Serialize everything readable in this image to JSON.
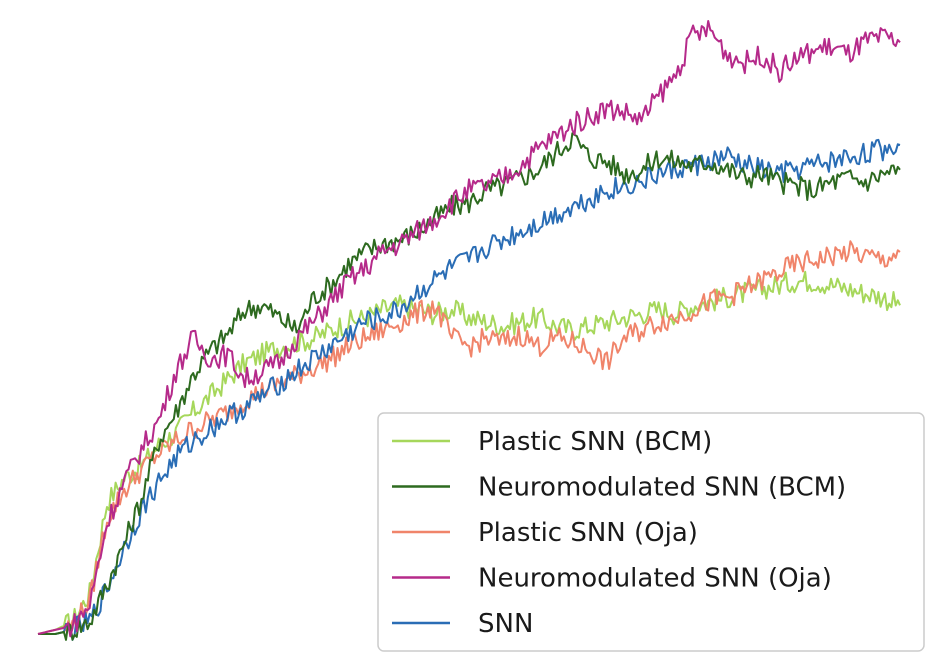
{
  "chart_data": {
    "type": "line",
    "title": "",
    "xlabel": "",
    "ylabel": "",
    "axes_visible": false,
    "grid": false,
    "legend_position": "bottom-right",
    "x": [
      0,
      2,
      4,
      6,
      8,
      10,
      12,
      14,
      16,
      18,
      20,
      22,
      24,
      26,
      28,
      30,
      32,
      34,
      36,
      38,
      40,
      42,
      44,
      46,
      48,
      50,
      52,
      54,
      56,
      58,
      60,
      62,
      64,
      66,
      68,
      70,
      72,
      74,
      76,
      78,
      80,
      82,
      84,
      86,
      88,
      90,
      92,
      94,
      96,
      98,
      100
    ],
    "series": [
      {
        "name": "Plastic SNN (BCM)",
        "color": "#a6d75b",
        "values": [
          0,
          1,
          3,
          10,
          32,
          38,
          41,
          46,
          49,
          54,
          58,
          62,
          66,
          68,
          70,
          71,
          72,
          74,
          76,
          77,
          79,
          80,
          79,
          78,
          79,
          77,
          76,
          75,
          76,
          77,
          75,
          74,
          75,
          76,
          77,
          78,
          79,
          78,
          80,
          81,
          82,
          83,
          84,
          85,
          86,
          86,
          85,
          84,
          83,
          82,
          80
        ]
      },
      {
        "name": "Neuromodulated SNN (BCM)",
        "color": "#2d6a1f",
        "values": [
          0,
          0,
          1,
          3,
          12,
          22,
          33,
          47,
          54,
          63,
          69,
          73,
          79,
          80,
          77,
          74,
          82,
          85,
          90,
          93,
          95,
          96,
          98,
          101,
          104,
          105,
          108,
          109,
          111,
          113,
          117,
          121,
          116,
          115,
          112,
          113,
          116,
          115,
          114,
          115,
          113,
          111,
          112,
          110,
          109,
          108,
          110,
          111,
          110,
          112,
          113
        ]
      },
      {
        "name": "Plastic SNN (Oja)",
        "color": "#f0846a",
        "values": [
          0,
          1,
          2,
          8,
          28,
          35,
          40,
          44,
          47,
          50,
          52,
          54,
          57,
          59,
          61,
          63,
          65,
          67,
          70,
          72,
          74,
          76,
          78,
          80,
          72,
          70,
          72,
          71,
          73,
          70,
          72,
          71,
          69,
          66,
          72,
          74,
          76,
          77,
          79,
          81,
          82,
          84,
          86,
          88,
          90,
          91,
          92,
          93,
          92,
          91,
          93
        ]
      },
      {
        "name": "Neuromodulated SNN (Oja)",
        "color": "#b52a8a",
        "values": [
          0,
          1,
          2,
          7,
          27,
          37,
          45,
          52,
          64,
          72,
          67,
          68,
          62,
          64,
          66,
          72,
          76,
          81,
          86,
          89,
          93,
          95,
          98,
          101,
          105,
          108,
          109,
          111,
          114,
          118,
          121,
          124,
          126,
          128,
          127,
          125,
          131,
          136,
          146,
          147,
          141,
          139,
          141,
          137,
          140,
          142,
          143,
          141,
          144,
          145,
          144
        ]
      },
      {
        "name": "SNN",
        "color": "#2a6db5",
        "values": [
          0,
          0,
          1,
          3,
          11,
          21,
          30,
          37,
          43,
          47,
          50,
          53,
          55,
          58,
          61,
          64,
          67,
          70,
          73,
          76,
          77,
          79,
          83,
          86,
          89,
          91,
          94,
          96,
          98,
          100,
          102,
          104,
          106,
          108,
          109,
          110,
          112,
          113,
          114,
          115,
          116,
          114,
          113,
          112,
          113,
          114,
          115,
          116,
          117,
          118,
          119
        ]
      }
    ]
  }
}
